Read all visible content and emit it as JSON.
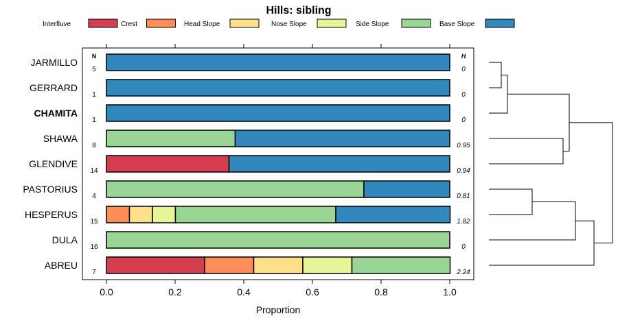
{
  "chart_data": {
    "type": "bar",
    "stacked": true,
    "orientation": "horizontal",
    "title": "Hills: sibling",
    "xlabel": "Proportion",
    "ylabel": "",
    "xlim": [
      0,
      1
    ],
    "xticks": [
      "0.0",
      "0.2",
      "0.4",
      "0.6",
      "0.8",
      "1.0"
    ],
    "n_header": "N",
    "h_header": "H",
    "highlight": "CHAMITA",
    "legend": [
      {
        "name": "Interfluve",
        "color": "#d53e4f"
      },
      {
        "name": "Crest",
        "color": "#fc8d59"
      },
      {
        "name": "Head Slope",
        "color": "#fee08b"
      },
      {
        "name": "Nose Slope",
        "color": "#e6f598"
      },
      {
        "name": "Side Slope",
        "color": "#99d594"
      },
      {
        "name": "Base Slope",
        "color": "#3288bd"
      }
    ],
    "rows": [
      {
        "label": "JARMILLO",
        "n": "5",
        "h": "0",
        "values": [
          0,
          0,
          0,
          0,
          0,
          1.0
        ]
      },
      {
        "label": "GERRARD",
        "n": "1",
        "h": "0",
        "values": [
          0,
          0,
          0,
          0,
          0,
          1.0
        ]
      },
      {
        "label": "CHAMITA",
        "n": "1",
        "h": "0",
        "values": [
          0,
          0,
          0,
          0,
          0,
          1.0
        ]
      },
      {
        "label": "SHAWA",
        "n": "8",
        "h": "0.95",
        "values": [
          0,
          0,
          0,
          0,
          0.375,
          0.625
        ]
      },
      {
        "label": "GLENDIVE",
        "n": "14",
        "h": "0.94",
        "values": [
          0.357,
          0,
          0,
          0,
          0,
          0.643
        ]
      },
      {
        "label": "PASTORIUS",
        "n": "4",
        "h": "0.81",
        "values": [
          0,
          0,
          0,
          0,
          0.75,
          0.25
        ]
      },
      {
        "label": "HESPERUS",
        "n": "15",
        "h": "1.82",
        "values": [
          0,
          0.067,
          0.067,
          0.067,
          0.467,
          0.333
        ]
      },
      {
        "label": "DULA",
        "n": "16",
        "h": "0",
        "values": [
          0,
          0,
          0,
          0,
          1.0,
          0
        ]
      },
      {
        "label": "ABREU",
        "n": "7",
        "h": "2.24",
        "values": [
          0.286,
          0.143,
          0.143,
          0.143,
          0.286,
          0
        ]
      }
    ],
    "dendrogram": {
      "description": "hierarchical clustering of rows",
      "merges": [
        {
          "a": "JARMILLO",
          "b": "GERRARD",
          "height": 0.1
        },
        {
          "a": "m1",
          "b": "CHAMITA",
          "height": 0.15
        },
        {
          "a": "SHAWA",
          "b": "GLENDIVE",
          "height": 0.6
        },
        {
          "a": "m2",
          "b": "m3",
          "height": 0.65
        },
        {
          "a": "PASTORIUS",
          "b": "HESPERUS",
          "height": 0.35
        },
        {
          "a": "m5",
          "b": "DULA",
          "height": 0.7
        },
        {
          "a": "m6",
          "b": "ABREU",
          "height": 0.85
        },
        {
          "a": "m4",
          "b": "m7",
          "height": 1.0
        }
      ]
    }
  }
}
